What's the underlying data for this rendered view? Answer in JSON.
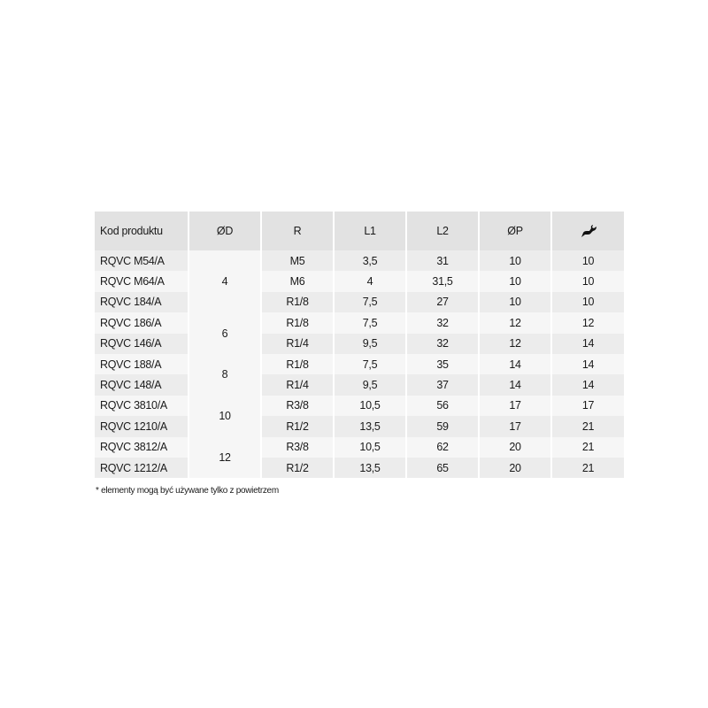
{
  "table": {
    "headers": [
      "Kod produktu",
      "ØD",
      "R",
      "L1",
      "L2",
      "ØP"
    ],
    "wrench_header_icon": "wrench-icon",
    "rows": [
      {
        "code": "RQVC M54/A",
        "R": "M5",
        "L1": "3,5",
        "L2": "31",
        "P": "10",
        "key": "10"
      },
      {
        "code": "RQVC M64/A",
        "R": "M6",
        "L1": "4",
        "L2": "31,5",
        "P": "10",
        "key": "10"
      },
      {
        "code": "RQVC 184/A",
        "R": "R1/8",
        "L1": "7,5",
        "L2": "27",
        "P": "10",
        "key": "10"
      },
      {
        "code": "RQVC 186/A",
        "R": "R1/8",
        "L1": "7,5",
        "L2": "32",
        "P": "12",
        "key": "12"
      },
      {
        "code": "RQVC 146/A",
        "R": "R1/4",
        "L1": "9,5",
        "L2": "32",
        "P": "12",
        "key": "14"
      },
      {
        "code": "RQVC 188/A",
        "R": "R1/8",
        "L1": "7,5",
        "L2": "35",
        "P": "14",
        "key": "14"
      },
      {
        "code": "RQVC 148/A",
        "R": "R1/4",
        "L1": "9,5",
        "L2": "37",
        "P": "14",
        "key": "14"
      },
      {
        "code": "RQVC 3810/A",
        "R": "R3/8",
        "L1": "10,5",
        "L2": "56",
        "P": "17",
        "key": "17"
      },
      {
        "code": "RQVC 1210/A",
        "R": "R1/2",
        "L1": "13,5",
        "L2": "59",
        "P": "17",
        "key": "21"
      },
      {
        "code": "RQVC 3812/A",
        "R": "R3/8",
        "L1": "10,5",
        "L2": "62",
        "P": "20",
        "key": "21"
      },
      {
        "code": "RQVC 1212/A",
        "R": "R1/2",
        "L1": "13,5",
        "L2": "65",
        "P": "20",
        "key": "21"
      }
    ],
    "d_groups": [
      {
        "value": "4",
        "span": 3
      },
      {
        "value": "6",
        "span": 2
      },
      {
        "value": "8",
        "span": 2
      },
      {
        "value": "10",
        "span": 2
      },
      {
        "value": "12",
        "span": 2
      }
    ]
  },
  "footnote": "* elementy mogą być używane tylko z powietrzem"
}
